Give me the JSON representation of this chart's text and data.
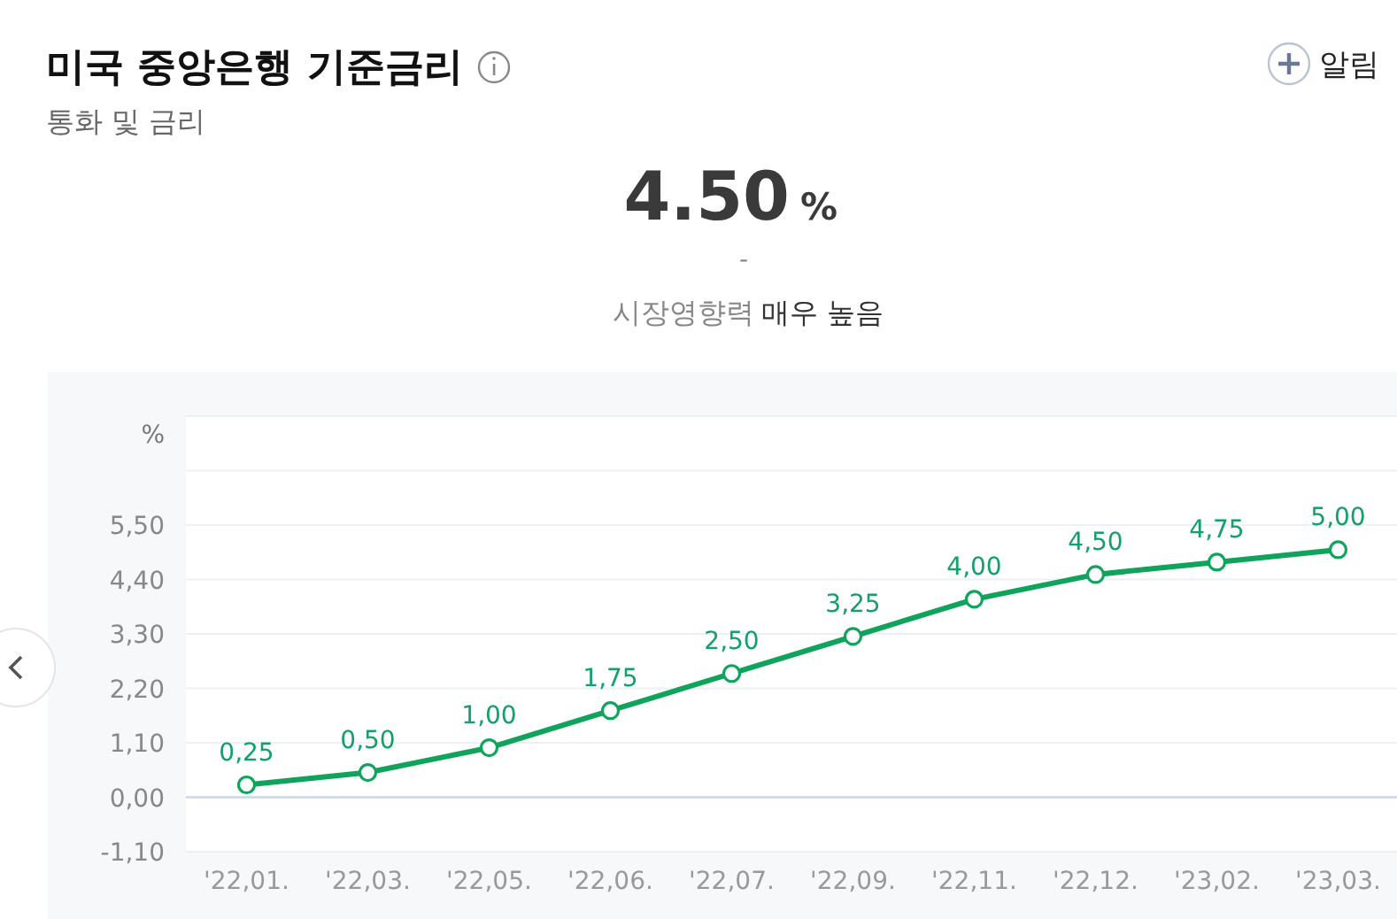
{
  "chart_data": {
    "type": "line",
    "title": "미국 중앙은행 기준금리",
    "subtitle": "통화 및 금리",
    "ylabel": "%",
    "annotations": [
      "4.50",
      "%",
      "-",
      "시장영향력",
      "매우 높음",
      "알림"
    ],
    "categories": [
      "'22,01.",
      "'22,03.",
      "'22,05.",
      "'22,06.",
      "'22,07.",
      "'22,09.",
      "'22,11.",
      "'22,12.",
      "'23,02.",
      "'23,03."
    ],
    "series": [
      {
        "color": "#0fa35c",
        "values": [
          0.25,
          0.5,
          1.0,
          1.75,
          2.5,
          3.25,
          4.0,
          4.5,
          4.75,
          5.0
        ],
        "value_labels": [
          "0,25",
          "0,50",
          "1,00",
          "1,75",
          "2,50",
          "3,25",
          "4,00",
          "4,50",
          "4,75",
          "5,00"
        ]
      }
    ],
    "ylim": [
      -1.1,
      7.7
    ],
    "yticks": [
      {
        "value": -1.1,
        "label": "-1,10"
      },
      {
        "value": 0,
        "label": "0,00"
      },
      {
        "value": 1.1,
        "label": "1,10"
      },
      {
        "value": 2.2,
        "label": "2,20"
      },
      {
        "value": 3.3,
        "label": "3,30"
      },
      {
        "value": 4.4,
        "label": "4,40"
      },
      {
        "value": 5.5,
        "label": "5,50"
      },
      {
        "value": 6.6,
        "label": null
      },
      {
        "value": 7.7,
        "label": null
      }
    ],
    "grid": "y",
    "marker": "circle",
    "line_style": "solid"
  }
}
